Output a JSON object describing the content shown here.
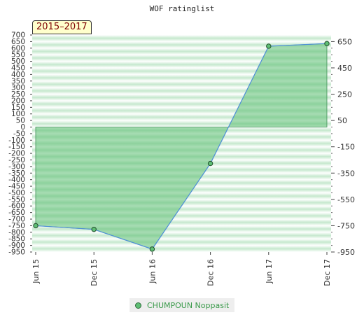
{
  "chart_data": {
    "type": "area",
    "title": "WOF ratinglist",
    "period": "2015–2017",
    "x": [
      "Jun 15",
      "Dec 15",
      "Jun 16",
      "Dec 16",
      "Jun 17",
      "Dec 17"
    ],
    "series": [
      {
        "name": "CHUMPOUN Noppasit",
        "values": [
          -750,
          -778,
          -928,
          -277,
          615,
          635
        ]
      }
    ],
    "ylim": [
      -950,
      700
    ],
    "left_axis_ticks": [
      700,
      650,
      600,
      550,
      500,
      450,
      400,
      350,
      300,
      250,
      200,
      150,
      100,
      50,
      0,
      -50,
      -100,
      -150,
      -200,
      -250,
      -300,
      -350,
      -400,
      -450,
      -500,
      -550,
      -600,
      -650,
      -700,
      -750,
      -800,
      -850,
      -900,
      -950
    ],
    "left_axis_labels": [
      "700",
      "650",
      "600",
      "550",
      "500",
      "450",
      "400",
      "350",
      "300",
      "250",
      "200",
      "150",
      "100",
      "50",
      "0",
      "-50",
      "-100",
      "-150",
      "-200",
      "-250",
      "-300",
      "-350",
      "-400",
      "-450",
      "-500",
      "-550",
      "-600",
      "-650",
      "-700",
      "-750",
      "-800",
      "-850",
      "-900",
      "-950"
    ],
    "right_axis_ticks": [
      650,
      450,
      250,
      50,
      -150,
      -350,
      -550,
      -750,
      -950
    ],
    "right_axis_labels": [
      "650",
      "450",
      "250",
      "50",
      "-150",
      "-350",
      "-550",
      "-750",
      "-950"
    ],
    "legend": "bottom",
    "colors": {
      "area": "#5fbf75",
      "line": "#4f90d8",
      "marker": "#5fbf75"
    }
  }
}
